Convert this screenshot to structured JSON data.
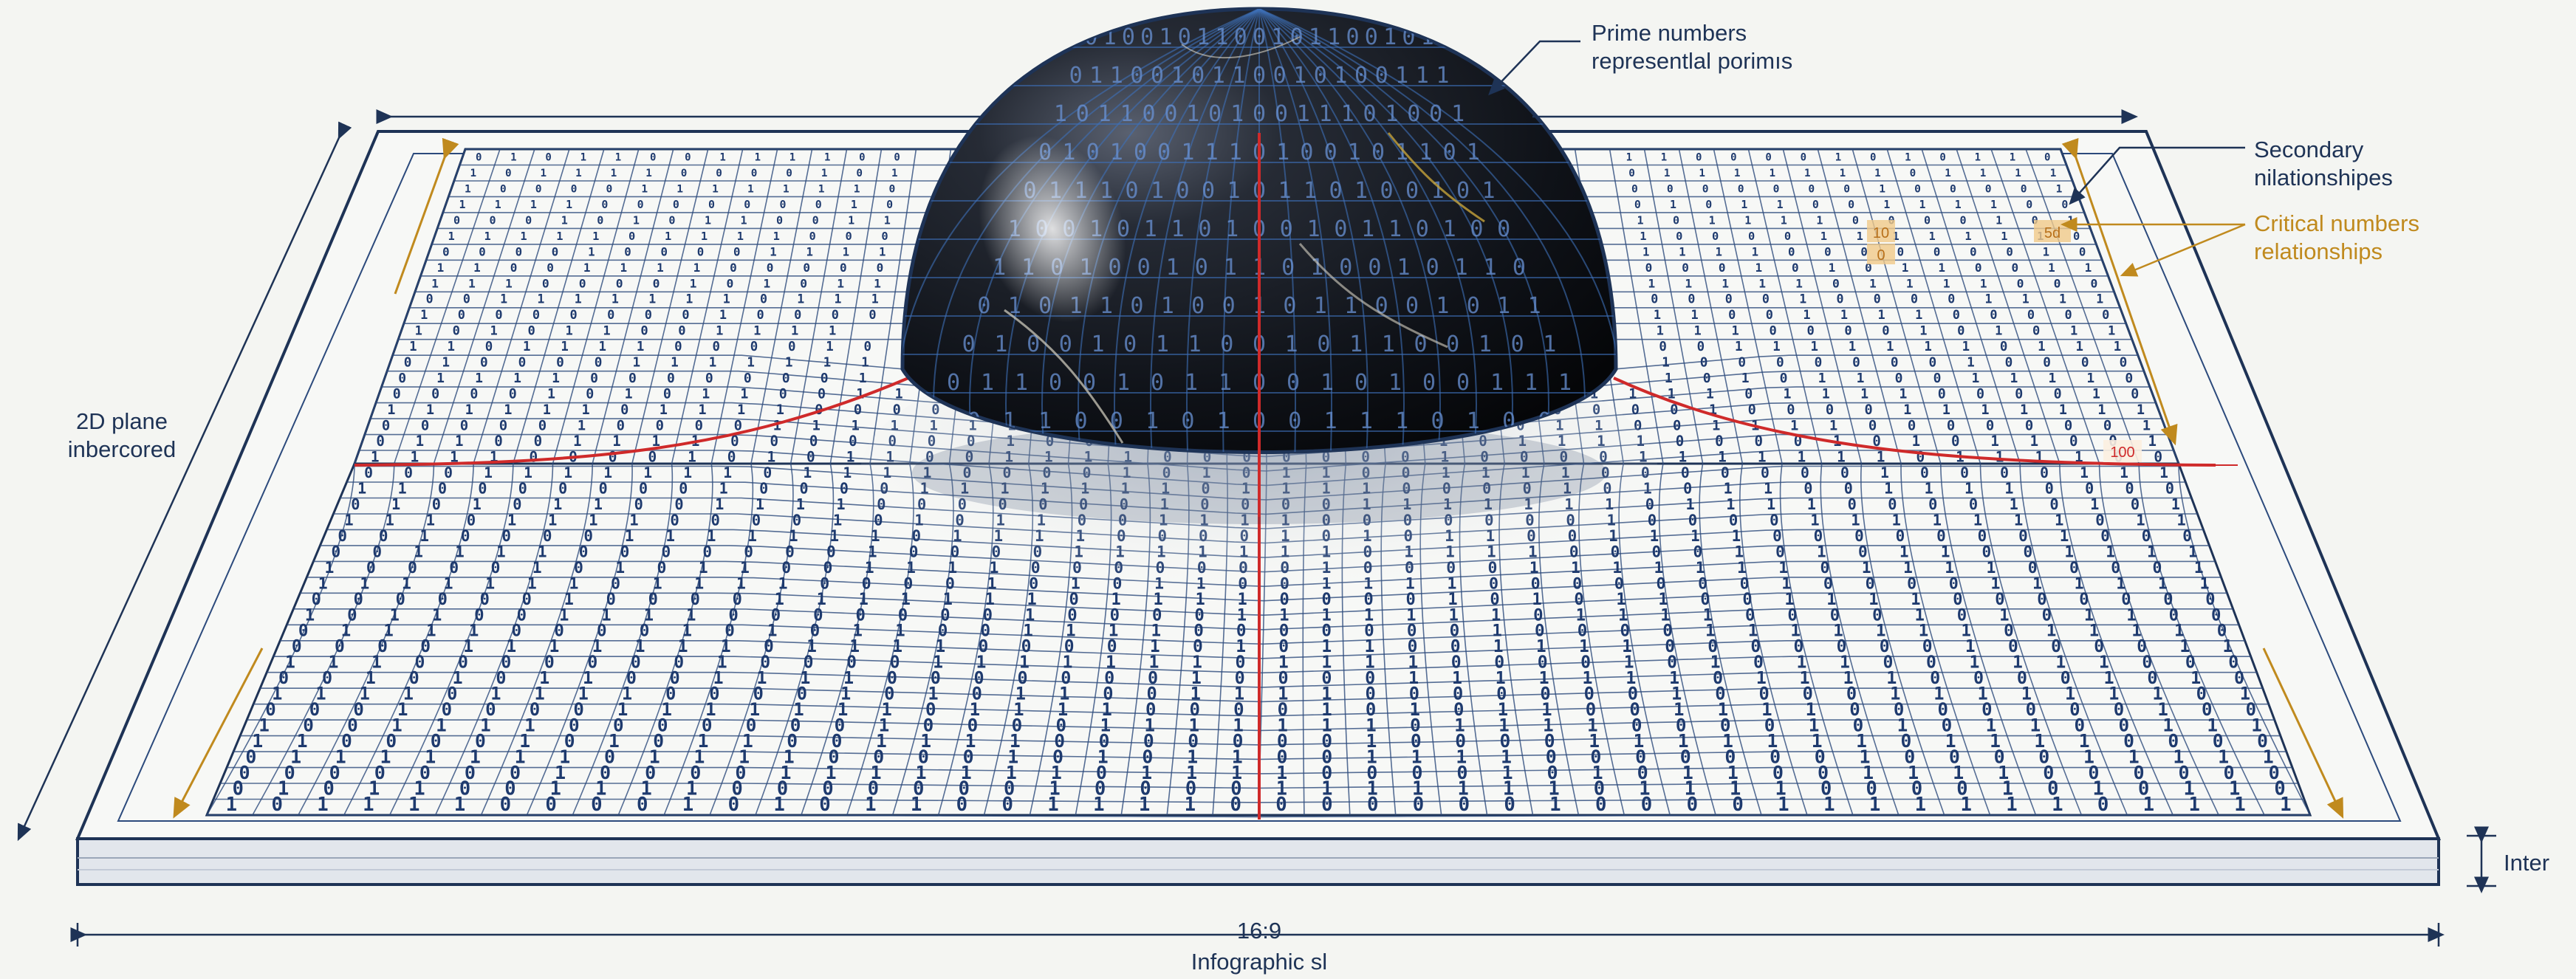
{
  "colors": {
    "background": "#f4f5f2",
    "navy": "#1e3356",
    "grid_line": "#2c4a7c",
    "digit": "#1e3a6e",
    "red_axis": "#cf2a2a",
    "gold": "#c08a1e",
    "sphere_dark": "#0d0f14"
  },
  "labels": {
    "prime_line1": "Prime numbers",
    "prime_line2": "representlal porimıs",
    "secondary_line1": "Secondary",
    "secondary_line2": "nilationshipes",
    "critical_line1": "Critical numbers",
    "critical_line2": "relationships",
    "plane_line1": "2D plane",
    "plane_line2": "inbercored",
    "side_dimension": "Inter",
    "ratio": "16:9",
    "caption": "Infographic sl"
  },
  "tile_numbers": [
    "10",
    "0",
    "5d",
    "100"
  ],
  "binary_seed_row": "0101100101001110100101101001011010010110"
}
